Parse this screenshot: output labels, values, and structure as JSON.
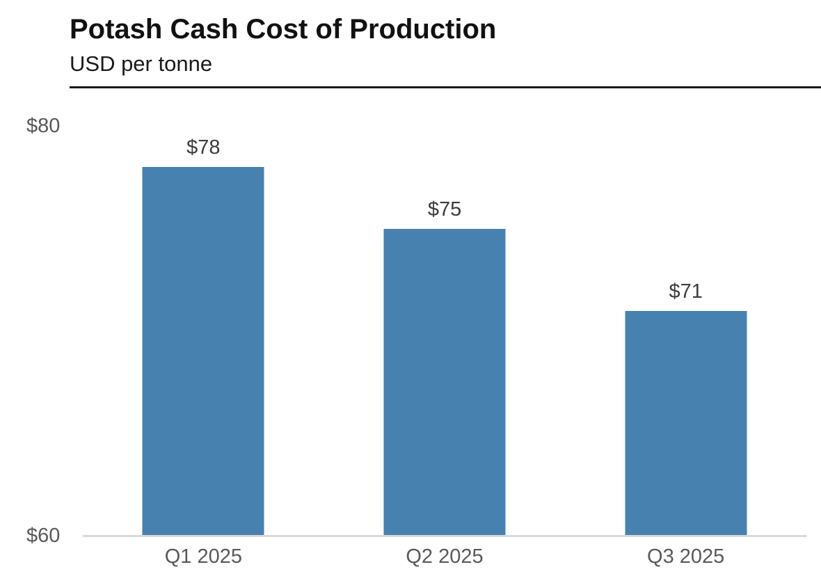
{
  "header": {
    "title": "Potash Cash Cost of Production",
    "subtitle": "USD per tonne"
  },
  "chart_data": {
    "type": "bar",
    "title": "Potash Cash Cost of Production",
    "subtitle": "USD per tonne",
    "categories": [
      "Q1 2025",
      "Q2 2025",
      "Q3 2025"
    ],
    "values": [
      78,
      75,
      71
    ],
    "value_labels": [
      "$78",
      "$75",
      "$71"
    ],
    "xlabel": "",
    "ylabel": "USD per tonne",
    "ylim": [
      60,
      80
    ],
    "yticks": [
      {
        "value": 60,
        "label": "$60"
      },
      {
        "value": 80,
        "label": "$80"
      }
    ],
    "grid": false,
    "legend": false,
    "bar_color": "#4781B0",
    "axis_line_color": "#d9d9d9",
    "divider_color": "#1a1a1a",
    "tick_label_color": "#595959",
    "value_label_color": "#3c3c3c"
  }
}
